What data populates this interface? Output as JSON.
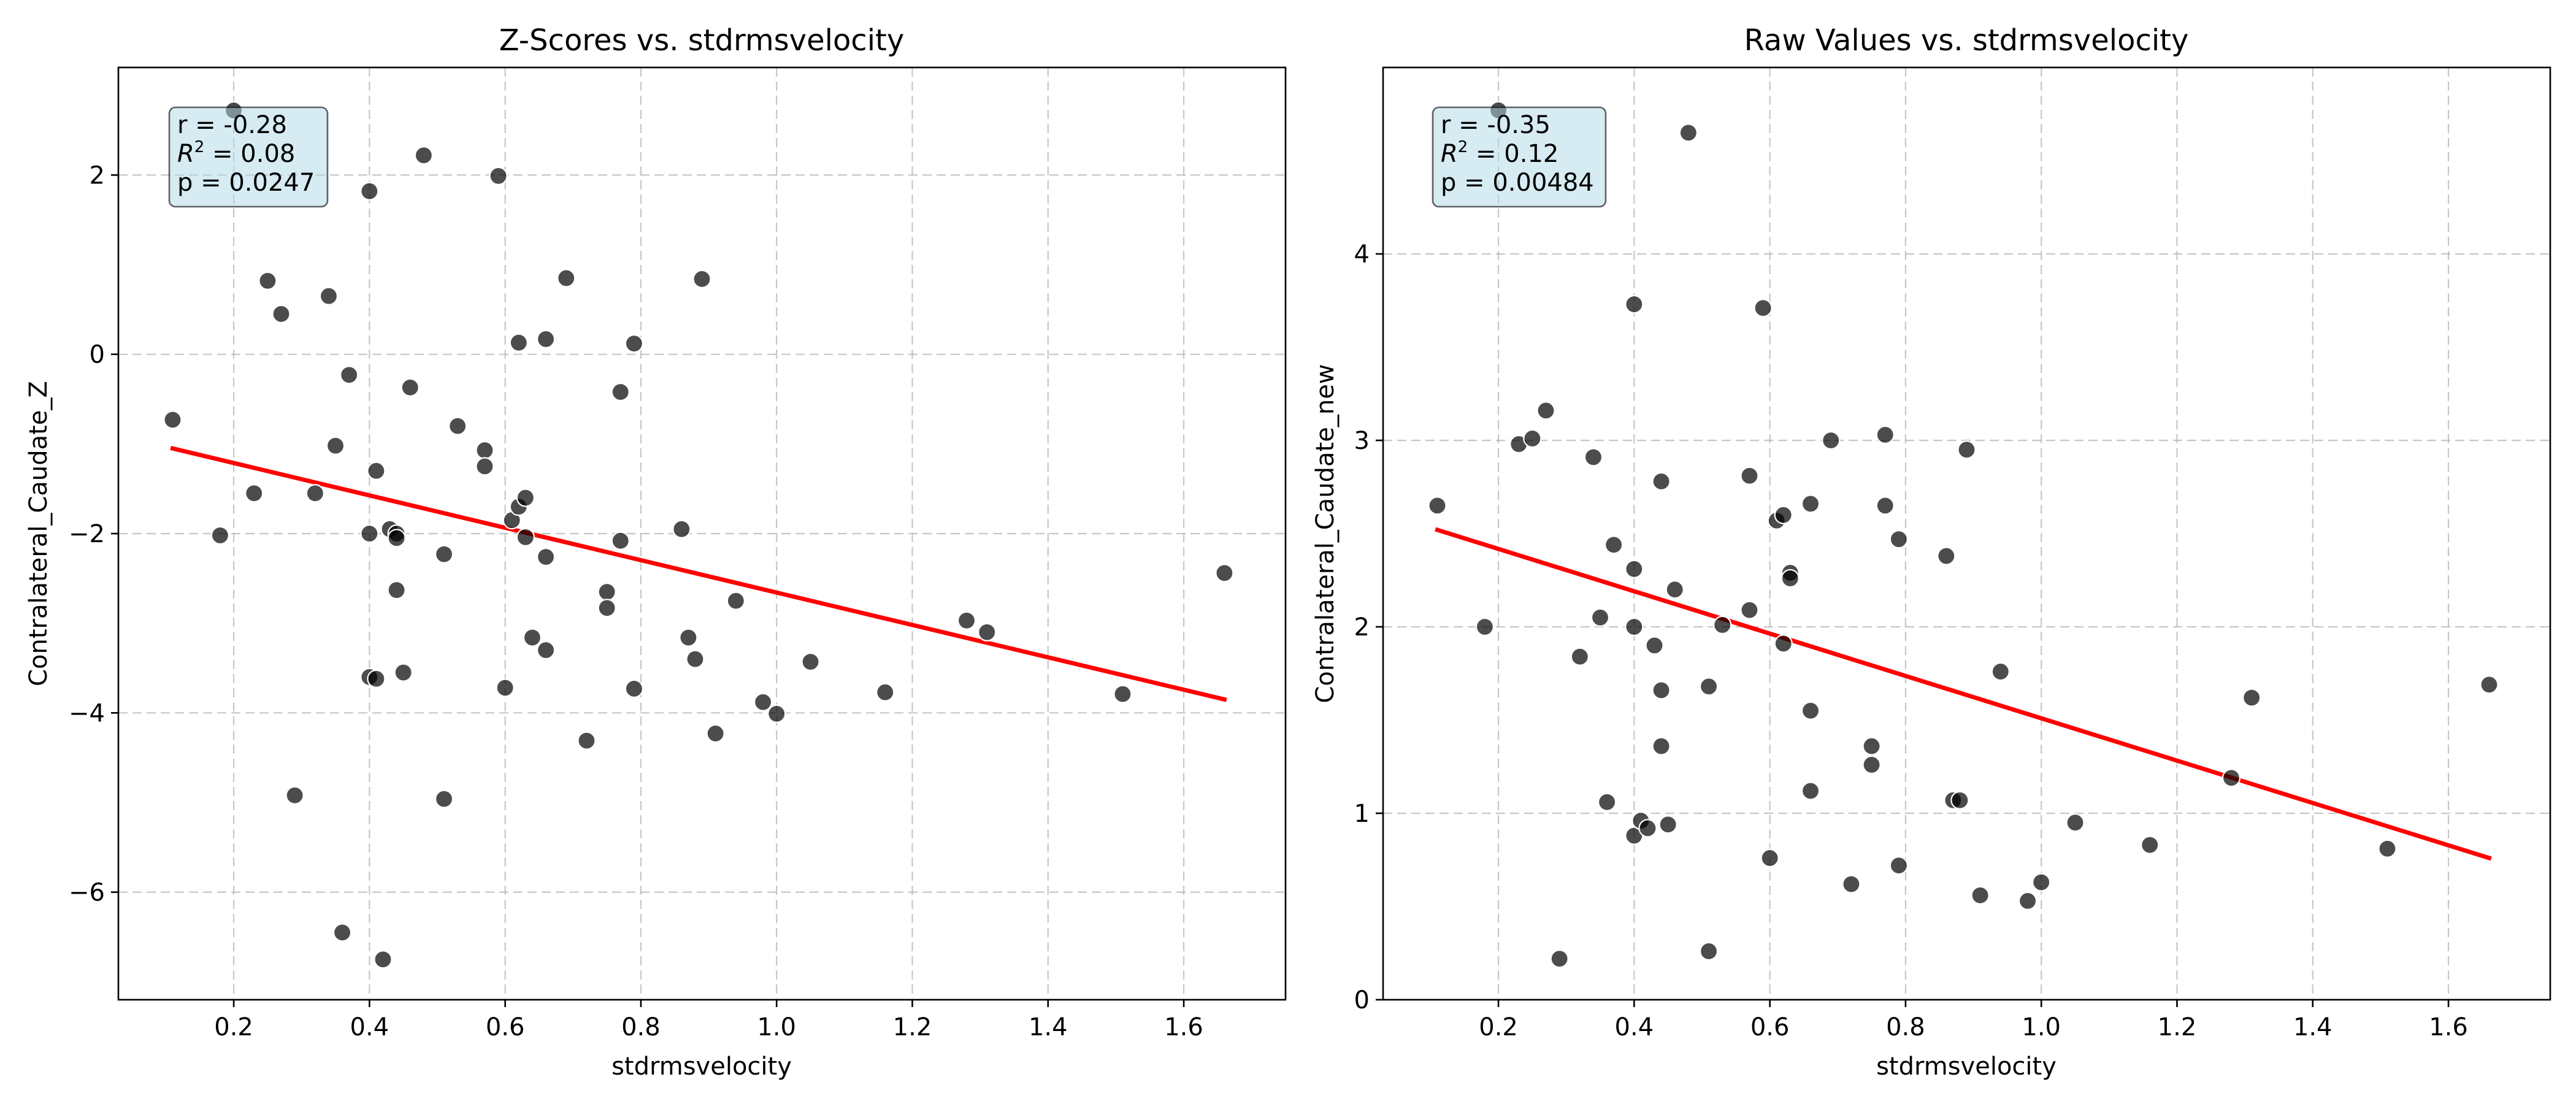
{
  "chart_data": [
    {
      "type": "scatter",
      "title": "Z-Scores vs. stdrmsvelocity",
      "xlabel": "stdrmsvelocity",
      "ylabel": "Contralateral_Caudate_Z",
      "xlim": [
        0.03,
        1.75
      ],
      "ylim": [
        -7.2,
        3.2
      ],
      "xticks": [
        0.2,
        0.4,
        0.6,
        0.8,
        1.0,
        1.2,
        1.4,
        1.6
      ],
      "xtick_labels": [
        "0.2",
        "0.4",
        "0.6",
        "0.8",
        "1.0",
        "1.2",
        "1.4",
        "1.6"
      ],
      "yticks": [
        -6,
        -4,
        -2,
        0,
        2
      ],
      "ytick_labels": [
        "−6",
        "−4",
        "−2",
        "0",
        "2"
      ],
      "grid": true,
      "stats": {
        "r": "r = -0.28",
        "r2_prefix": "R",
        "r2_sup": "2",
        "r2_value": " = 0.08",
        "p": "p = 0.0247"
      },
      "fit_line": {
        "x": [
          0.11,
          1.66
        ],
        "y": [
          -1.05,
          -3.85
        ],
        "color": "#ff0000"
      },
      "point_color": "#404040",
      "points": [
        [
          0.11,
          -0.73
        ],
        [
          0.18,
          -2.02
        ],
        [
          0.2,
          2.72
        ],
        [
          0.23,
          -1.55
        ],
        [
          0.25,
          0.82
        ],
        [
          0.27,
          0.45
        ],
        [
          0.29,
          -4.92
        ],
        [
          0.32,
          -1.55
        ],
        [
          0.34,
          0.65
        ],
        [
          0.35,
          -1.02
        ],
        [
          0.36,
          -6.45
        ],
        [
          0.37,
          -0.23
        ],
        [
          0.4,
          1.82
        ],
        [
          0.4,
          -2.0
        ],
        [
          0.4,
          -3.6
        ],
        [
          0.41,
          -1.3
        ],
        [
          0.41,
          -3.62
        ],
        [
          0.42,
          -6.75
        ],
        [
          0.43,
          -1.95
        ],
        [
          0.44,
          -2.0
        ],
        [
          0.44,
          -2.05
        ],
        [
          0.44,
          -2.63
        ],
        [
          0.45,
          -3.55
        ],
        [
          0.46,
          -0.37
        ],
        [
          0.48,
          2.22
        ],
        [
          0.51,
          -2.23
        ],
        [
          0.51,
          -4.96
        ],
        [
          0.53,
          -0.8
        ],
        [
          0.57,
          -1.07
        ],
        [
          0.57,
          -1.25
        ],
        [
          0.59,
          1.99
        ],
        [
          0.6,
          -3.72
        ],
        [
          0.61,
          -1.85
        ],
        [
          0.62,
          -1.7
        ],
        [
          0.62,
          0.13
        ],
        [
          0.63,
          -1.6
        ],
        [
          0.63,
          -2.04
        ],
        [
          0.64,
          -3.16
        ],
        [
          0.66,
          0.17
        ],
        [
          0.66,
          -2.26
        ],
        [
          0.66,
          -3.3
        ],
        [
          0.69,
          0.85
        ],
        [
          0.72,
          -4.31
        ],
        [
          0.75,
          -2.65
        ],
        [
          0.75,
          -2.83
        ],
        [
          0.77,
          -0.42
        ],
        [
          0.77,
          -2.08
        ],
        [
          0.79,
          0.12
        ],
        [
          0.79,
          -3.73
        ],
        [
          0.86,
          -1.95
        ],
        [
          0.87,
          -3.16
        ],
        [
          0.88,
          -3.4
        ],
        [
          0.89,
          0.84
        ],
        [
          0.91,
          -4.23
        ],
        [
          0.94,
          -2.75
        ],
        [
          0.98,
          -3.88
        ],
        [
          1.0,
          -4.01
        ],
        [
          1.05,
          -3.43
        ],
        [
          1.16,
          -3.77
        ],
        [
          1.28,
          -2.97
        ],
        [
          1.31,
          -3.1
        ],
        [
          1.51,
          -3.79
        ],
        [
          1.66,
          -2.44
        ]
      ]
    },
    {
      "type": "scatter",
      "title": "Raw Values vs. stdrmsvelocity",
      "xlabel": "stdrmsvelocity",
      "ylabel": "Contralateral_Caudate_new",
      "xlim": [
        0.03,
        1.75
      ],
      "ylim": [
        0,
        5
      ],
      "xticks": [
        0.2,
        0.4,
        0.6,
        0.8,
        1.0,
        1.2,
        1.4,
        1.6
      ],
      "xtick_labels": [
        "0.2",
        "0.4",
        "0.6",
        "0.8",
        "1.0",
        "1.2",
        "1.4",
        "1.6"
      ],
      "yticks": [
        0,
        1,
        2,
        3,
        4
      ],
      "ytick_labels": [
        "0",
        "1",
        "2",
        "3",
        "4"
      ],
      "grid": true,
      "stats": {
        "r": "r = -0.35",
        "r2_prefix": "R",
        "r2_sup": "2",
        "r2_value": " = 0.12",
        "p": "p = 0.00484"
      },
      "fit_line": {
        "x": [
          0.11,
          1.66
        ],
        "y": [
          2.52,
          0.76
        ],
        "color": "#ff0000"
      },
      "point_color": "#404040",
      "points": [
        [
          0.11,
          2.65
        ],
        [
          0.18,
          2.0
        ],
        [
          0.2,
          4.77
        ],
        [
          0.23,
          2.98
        ],
        [
          0.25,
          3.01
        ],
        [
          0.27,
          3.16
        ],
        [
          0.29,
          0.22
        ],
        [
          0.32,
          1.84
        ],
        [
          0.34,
          2.91
        ],
        [
          0.35,
          2.05
        ],
        [
          0.36,
          1.06
        ],
        [
          0.37,
          2.44
        ],
        [
          0.4,
          3.73
        ],
        [
          0.4,
          2.31
        ],
        [
          0.4,
          2.0
        ],
        [
          0.4,
          0.88
        ],
        [
          0.41,
          0.96
        ],
        [
          0.42,
          0.92
        ],
        [
          0.43,
          1.9
        ],
        [
          0.44,
          2.78
        ],
        [
          0.44,
          1.66
        ],
        [
          0.44,
          1.36
        ],
        [
          0.45,
          0.94
        ],
        [
          0.46,
          2.2
        ],
        [
          0.48,
          4.65
        ],
        [
          0.51,
          1.68
        ],
        [
          0.51,
          0.26
        ],
        [
          0.53,
          2.01
        ],
        [
          0.57,
          2.09
        ],
        [
          0.57,
          2.81
        ],
        [
          0.59,
          3.71
        ],
        [
          0.6,
          0.76
        ],
        [
          0.61,
          2.57
        ],
        [
          0.62,
          2.6
        ],
        [
          0.62,
          1.91
        ],
        [
          0.63,
          2.29
        ],
        [
          0.63,
          2.26
        ],
        [
          0.66,
          2.66
        ],
        [
          0.66,
          1.55
        ],
        [
          0.66,
          1.12
        ],
        [
          0.69,
          3.0
        ],
        [
          0.72,
          0.62
        ],
        [
          0.75,
          1.36
        ],
        [
          0.75,
          1.26
        ],
        [
          0.77,
          3.03
        ],
        [
          0.77,
          2.65
        ],
        [
          0.79,
          2.47
        ],
        [
          0.79,
          0.72
        ],
        [
          0.86,
          2.38
        ],
        [
          0.87,
          1.07
        ],
        [
          0.88,
          1.07
        ],
        [
          0.89,
          2.95
        ],
        [
          0.91,
          0.56
        ],
        [
          0.94,
          1.76
        ],
        [
          0.98,
          0.53
        ],
        [
          1.0,
          0.63
        ],
        [
          1.05,
          0.95
        ],
        [
          1.16,
          0.83
        ],
        [
          1.28,
          1.19
        ],
        [
          1.31,
          1.62
        ],
        [
          1.51,
          0.81
        ],
        [
          1.66,
          1.69
        ]
      ]
    }
  ]
}
